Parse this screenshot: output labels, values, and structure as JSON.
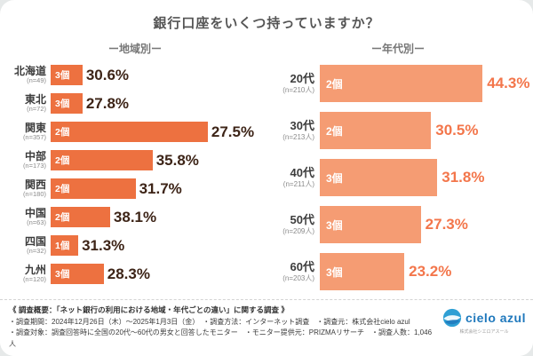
{
  "title": "銀行口座をいくつ持っていますか？",
  "chart_data": [
    {
      "type": "bar",
      "orientation": "horizontal",
      "section_title": "ー地域別ー",
      "unit": "%",
      "note": "Each bar shows the most common number of bank accounts (個) per region and the share of respondents; bar lengths are decorative, not value-proportional",
      "rows": [
        {
          "category": "北海道",
          "n": "(n=49)",
          "mode": "3個",
          "value": 30.6,
          "value_label": "30.6%",
          "bar": 15
        },
        {
          "category": "東北",
          "n": "(n=72)",
          "mode": "3個",
          "value": 27.8,
          "value_label": "27.8%",
          "bar": 15
        },
        {
          "category": "関東",
          "n": "(n=357)",
          "mode": "2個",
          "value": 27.5,
          "value_label": "27.5%",
          "bar": 74
        },
        {
          "category": "中部",
          "n": "(n=173)",
          "mode": "2個",
          "value": 35.8,
          "value_label": "35.8%",
          "bar": 48
        },
        {
          "category": "関西",
          "n": "(n=180)",
          "mode": "2個",
          "value": 31.7,
          "value_label": "31.7%",
          "bar": 40
        },
        {
          "category": "中国",
          "n": "(n=63)",
          "mode": "2個",
          "value": 38.1,
          "value_label": "38.1%",
          "bar": 28
        },
        {
          "category": "四国",
          "n": "(n=32)",
          "mode": "1個",
          "value": 31.3,
          "value_label": "31.3%",
          "bar": 13
        },
        {
          "category": "九州",
          "n": "(n=120)",
          "mode": "3個",
          "value": 28.3,
          "value_label": "28.3%",
          "bar": 25
        }
      ]
    },
    {
      "type": "bar",
      "orientation": "horizontal",
      "section_title": "ー年代別ー",
      "unit": "%",
      "note": "Each bar shows the most common number of bank accounts (個) per age group and the share of respondents; bar lengths proportional to value",
      "rows": [
        {
          "category": "20代",
          "n": "(n=210人)",
          "mode": "2個",
          "value": 44.3,
          "value_label": "44.3%",
          "bar": 79
        },
        {
          "category": "30代",
          "n": "(n=213人)",
          "mode": "2個",
          "value": 30.5,
          "value_label": "30.5%",
          "bar": 54
        },
        {
          "category": "40代",
          "n": "(n=211人)",
          "mode": "3個",
          "value": 31.8,
          "value_label": "31.8%",
          "bar": 57
        },
        {
          "category": "50代",
          "n": "(n=209人)",
          "mode": "3個",
          "value": 27.3,
          "value_label": "27.3%",
          "bar": 49
        },
        {
          "category": "60代",
          "n": "(n=203人)",
          "mode": "3個",
          "value": 23.2,
          "value_label": "23.2%",
          "bar": 41
        }
      ]
    }
  ],
  "colors": {
    "region_bar": "#ed7140",
    "age_bar": "#f59c73",
    "region_value_text": "#3d2417",
    "age_value_text": "#f3764b",
    "title_text": "#555555",
    "logo_blue": "#1f78bc"
  },
  "footer": {
    "line1": "《 調査概要：「ネット銀行の利用における地域・年代ごとの違い」に関する調査 》",
    "line2": "・調査期間：2024年12月26日（木）〜2025年1月3日（金）　・調査方法：インターネット調査　・調査元：株式会社cielo azul",
    "line3": "・調査対象：調査回答時に全国の20代〜60代の男女と回答したモニター　・モニター提供元：PRIZMAリサーチ　・調査人数：1,046人"
  },
  "logo": {
    "text": "cielo azul",
    "subtext": "株式会社シエロアスール"
  }
}
